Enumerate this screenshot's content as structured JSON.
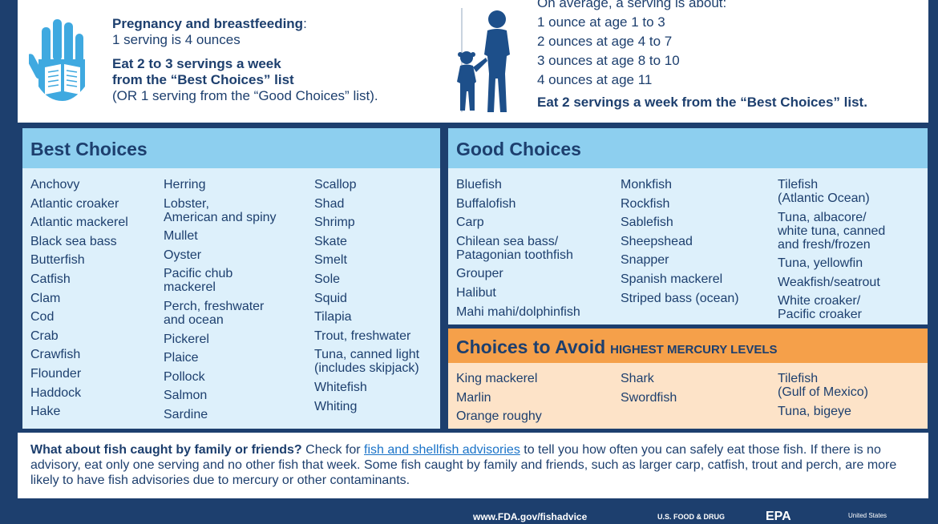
{
  "top": {
    "pregnancy": {
      "heading": "Pregnancy and breastfeeding",
      "heading_colon": ":",
      "serving": "1 serving is 4 ounces",
      "eat_line1": "Eat 2 to 3 servings a week",
      "eat_line2": "from the “Best Choices” list",
      "eat_line3": "(OR 1 serving from the “Good Choices” list)."
    },
    "children": {
      "intro": "On average, a serving is about:",
      "ages": [
        "1 ounce at age 1 to 3",
        "2 ounces at age 4 to 7",
        "3 ounces at age 8 to 10",
        "4 ounces at age 11"
      ],
      "eat": "Eat 2 servings a week from the “Best Choices” list."
    }
  },
  "best": {
    "title": "Best Choices",
    "col1": [
      "Anchovy",
      "Atlantic croaker",
      "Atlantic mackerel",
      "Black sea bass",
      "Butterfish",
      "Catfish",
      "Clam",
      "Cod",
      "Crab",
      "Crawfish",
      "Flounder",
      "Haddock",
      "Hake"
    ],
    "col2": [
      "Herring",
      "Lobster,\nAmerican and spiny",
      "Mullet",
      "Oyster",
      "Pacific chub\nmackerel",
      "Perch, freshwater\nand ocean",
      "Pickerel",
      "Plaice",
      "Pollock",
      "Salmon",
      "Sardine"
    ],
    "col3": [
      "Scallop",
      "Shad",
      "Shrimp",
      "Skate",
      "Smelt",
      "Sole",
      "Squid",
      "Tilapia",
      "Trout, freshwater",
      "Tuna, canned light\n(includes skipjack)",
      "Whitefish",
      "Whiting"
    ]
  },
  "good": {
    "title": "Good Choices",
    "col1": [
      "Bluefish",
      "Buffalofish",
      "Carp",
      "Chilean sea bass/\nPatagonian toothfish",
      "Grouper",
      "Halibut",
      "Mahi mahi/dolphinfish"
    ],
    "col2": [
      "Monkfish",
      "Rockfish",
      "Sablefish",
      "Sheepshead",
      "Snapper",
      "Spanish mackerel",
      "Striped bass (ocean)"
    ],
    "col3": [
      "Tilefish\n(Atlantic Ocean)",
      "Tuna, albacore/\nwhite tuna, canned\nand fresh/frozen",
      "Tuna, yellowfin",
      "Weakfish/seatrout",
      "White croaker/\nPacific croaker"
    ]
  },
  "avoid": {
    "title": "Choices to Avoid",
    "subtitle": "HIGHEST MERCURY LEVELS",
    "col1": [
      "King mackerel",
      "Marlin",
      "Orange roughy"
    ],
    "col2": [
      "Shark",
      "Swordfish"
    ],
    "col3": [
      "Tilefish\n(Gulf of Mexico)",
      "Tuna, bigeye"
    ]
  },
  "bottom": {
    "question": "What about fish caught by family or friends?",
    "pre_link": " Check for ",
    "link": "fish and shellfish advisories",
    "post_link": " to tell you how often you can safely eat those fish. If there is no advisory, eat only one serving and no other fish that week. Some fish caught by family and friends, such as larger carp, catfish, trout and perch, are more likely to have fish advisories due to mercury or other contaminants."
  },
  "footer": {
    "url": "www.FDA.gov/fishadvice",
    "fda_small": "U.S. FOOD & DRUG",
    "epa": "EPA",
    "us": "United States"
  },
  "colors": {
    "navy": "#1d3f6e",
    "light_blue_header": "#8dcfef",
    "light_blue_bg": "#ddf0fb",
    "orange_header": "#f5a04a",
    "orange_bg": "#fde3c8",
    "link": "#1a73c8"
  },
  "icons": [
    "hand-book-icon",
    "children-silhouette-icon"
  ]
}
